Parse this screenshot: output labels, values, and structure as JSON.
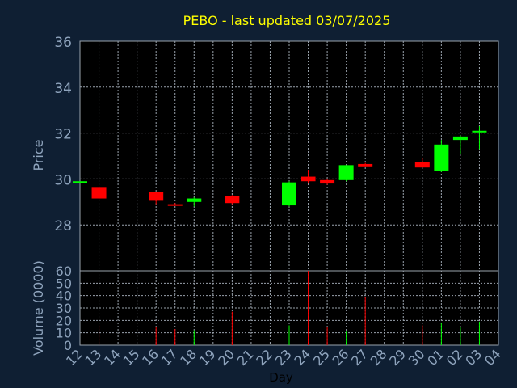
{
  "title": "PEBO - last updated 03/07/2025",
  "colors": {
    "background": "#0f1f33",
    "panel": "#000000",
    "grid": "#9aa3ad",
    "axis_text": "#8fa4bd",
    "title": "#ffff00",
    "up": "#00ff00",
    "down": "#ff0000",
    "xlabel": "#000000"
  },
  "chart_data": [
    {
      "type": "candlestick",
      "ylabel": "Price",
      "ylim": [
        26,
        36
      ],
      "yticks": [
        28,
        30,
        32,
        34,
        36
      ],
      "x_ticks": [
        "12",
        "13",
        "14",
        "15",
        "16",
        "17",
        "18",
        "19",
        "20",
        "21",
        "22",
        "23",
        "24",
        "25",
        "26",
        "27",
        "28",
        "29",
        "30",
        "01",
        "02",
        "03",
        "04"
      ],
      "candles": [
        {
          "day": "12",
          "open": 29.85,
          "high": 29.9,
          "low": 29.8,
          "close": 29.9
        },
        {
          "day": "13",
          "open": 29.65,
          "high": 29.7,
          "low": 29.1,
          "close": 29.15
        },
        {
          "day": "16",
          "open": 29.45,
          "high": 29.45,
          "low": 28.9,
          "close": 29.05
        },
        {
          "day": "17",
          "open": 28.9,
          "high": 28.95,
          "low": 28.85,
          "close": 28.85
        },
        {
          "day": "18",
          "open": 29.0,
          "high": 29.2,
          "low": 28.8,
          "close": 29.15
        },
        {
          "day": "20",
          "open": 29.25,
          "high": 29.3,
          "low": 28.9,
          "close": 28.95
        },
        {
          "day": "23",
          "open": 28.85,
          "high": 29.9,
          "low": 28.8,
          "close": 29.85
        },
        {
          "day": "24",
          "open": 30.1,
          "high": 30.4,
          "low": 29.8,
          "close": 29.9
        },
        {
          "day": "25",
          "open": 29.95,
          "high": 30.0,
          "low": 29.75,
          "close": 29.8
        },
        {
          "day": "26",
          "open": 29.95,
          "high": 30.6,
          "low": 29.9,
          "close": 30.6
        },
        {
          "day": "27",
          "open": 30.65,
          "high": 30.7,
          "low": 30.55,
          "close": 30.55
        },
        {
          "day": "30",
          "open": 30.75,
          "high": 30.9,
          "low": 30.5,
          "close": 30.5
        },
        {
          "day": "01",
          "open": 30.35,
          "high": 31.7,
          "low": 30.3,
          "close": 31.5
        },
        {
          "day": "02",
          "open": 31.7,
          "high": 31.9,
          "low": 31.1,
          "close": 31.85
        },
        {
          "day": "03",
          "open": 32.05,
          "high": 32.3,
          "low": 31.3,
          "close": 32.1
        }
      ]
    },
    {
      "type": "bar",
      "ylabel": "Volume (0000)",
      "xlabel": "Day",
      "ylim": [
        0,
        60
      ],
      "yticks": [
        0,
        10,
        20,
        30,
        40,
        50,
        60
      ],
      "bars": [
        {
          "day": "12",
          "value": 0,
          "direction": "up"
        },
        {
          "day": "13",
          "value": 16,
          "direction": "down"
        },
        {
          "day": "16",
          "value": 15,
          "direction": "down"
        },
        {
          "day": "17",
          "value": 13,
          "direction": "down"
        },
        {
          "day": "18",
          "value": 12,
          "direction": "up"
        },
        {
          "day": "20",
          "value": 27,
          "direction": "down"
        },
        {
          "day": "23",
          "value": 16,
          "direction": "up"
        },
        {
          "day": "24",
          "value": 60,
          "direction": "down"
        },
        {
          "day": "25",
          "value": 15,
          "direction": "down"
        },
        {
          "day": "26",
          "value": 11,
          "direction": "up"
        },
        {
          "day": "27",
          "value": 39,
          "direction": "down"
        },
        {
          "day": "30",
          "value": 16,
          "direction": "down"
        },
        {
          "day": "01",
          "value": 18,
          "direction": "up"
        },
        {
          "day": "02",
          "value": 15,
          "direction": "up"
        },
        {
          "day": "03",
          "value": 19,
          "direction": "up"
        }
      ]
    }
  ]
}
